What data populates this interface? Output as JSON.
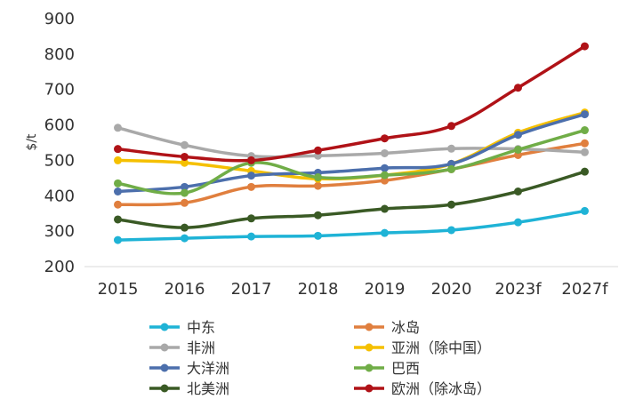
{
  "chart_data": {
    "type": "line",
    "title": "",
    "xlabel": "",
    "ylabel": "$/t",
    "categories": [
      "2015",
      "2016",
      "2017",
      "2018",
      "2019",
      "2020",
      "2023f",
      "2027f"
    ],
    "ylim": [
      200,
      900
    ],
    "yticks": [
      200,
      300,
      400,
      500,
      600,
      700,
      800,
      900
    ],
    "grid": false,
    "legend_position": "bottom",
    "series": [
      {
        "name": "中东",
        "color": "#1fb3d6",
        "values": [
          275,
          280,
          285,
          287,
          295,
          303,
          325,
          357
        ]
      },
      {
        "name": "冰岛",
        "color": "#e07f3e",
        "values": [
          375,
          380,
          425,
          428,
          443,
          475,
          515,
          548
        ]
      },
      {
        "name": "非洲",
        "color": "#a9a9a9",
        "values": [
          592,
          543,
          512,
          513,
          520,
          533,
          532,
          523
        ]
      },
      {
        "name": "亚洲（除中国）",
        "color": "#f5c000",
        "values": [
          500,
          493,
          470,
          448,
          458,
          490,
          578,
          635
        ]
      },
      {
        "name": "大洋洲",
        "color": "#4c6fac",
        "values": [
          412,
          425,
          457,
          465,
          478,
          490,
          572,
          630
        ]
      },
      {
        "name": "巴西",
        "color": "#70ad47",
        "values": [
          435,
          408,
          493,
          452,
          458,
          475,
          530,
          585
        ]
      },
      {
        "name": "北美洲",
        "color": "#3a5a25",
        "values": [
          333,
          310,
          336,
          345,
          363,
          375,
          412,
          468
        ]
      },
      {
        "name": "欧洲（除冰岛）",
        "color": "#b01217",
        "values": [
          532,
          510,
          500,
          528,
          562,
          597,
          705,
          822
        ]
      }
    ]
  }
}
